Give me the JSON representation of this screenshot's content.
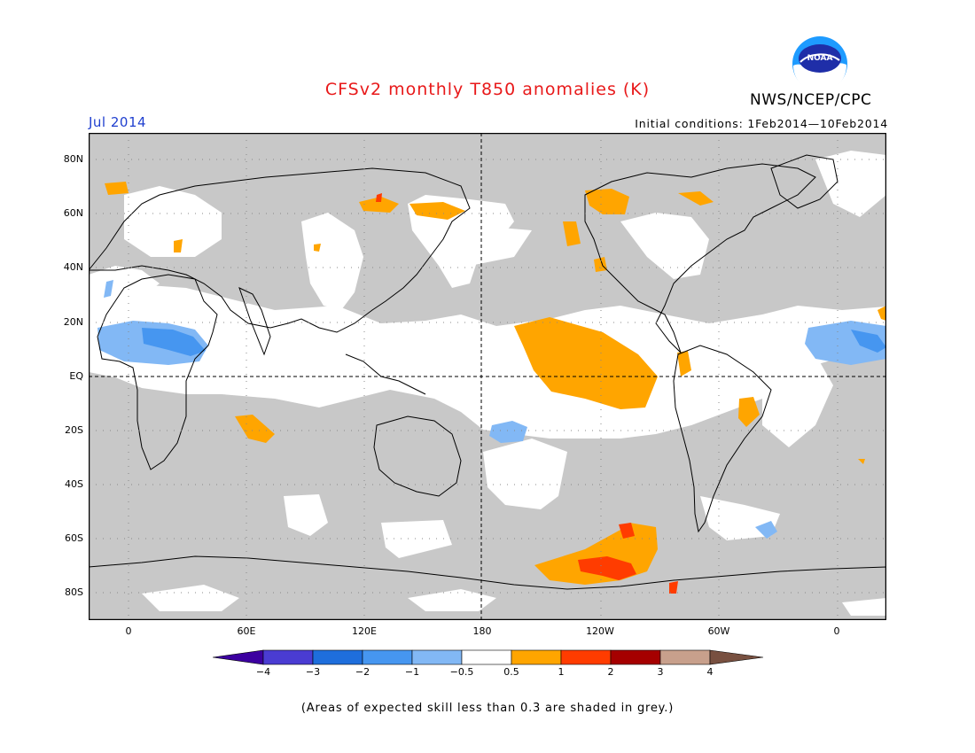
{
  "header": {
    "title": "CFSv2 monthly T850 anomalies (K)",
    "agency": "NWS/NCEP/CPC",
    "logo_text": "NOAA",
    "month": "Jul 2014",
    "initial_conditions": "Initial conditions: 1Feb2014—10Feb2014"
  },
  "map": {
    "projection": "equirectangular, centered on 180",
    "lat_labels": [
      "80N",
      "60N",
      "40N",
      "20N",
      "EQ",
      "20S",
      "40S",
      "60S",
      "80S"
    ],
    "lon_labels": [
      "0",
      "60E",
      "120E",
      "180",
      "120W",
      "60W",
      "0"
    ],
    "colors": {
      "grey_low_skill": "#c8c8c8",
      "neutral": "#ffffff",
      "orange_0_5_to_1": "#ffa500",
      "redorange_1_to_2": "#ff3c00",
      "lightblue_m1_to_m0_5": "#82b8f5",
      "blue_m2_to_m1": "#4696f0",
      "darkblue_m3_to_m2": "#1e6edc"
    }
  },
  "colorbar": {
    "labels": [
      "−4",
      "−3",
      "−2",
      "−1",
      "−0.5",
      "0.5",
      "1",
      "2",
      "3",
      "4"
    ],
    "bins": [
      {
        "color": "#3c00a0"
      },
      {
        "color": "#4a3cd2"
      },
      {
        "color": "#1e6edc"
      },
      {
        "color": "#4696f0"
      },
      {
        "color": "#82b8f5"
      },
      {
        "color": "#ffffff"
      },
      {
        "color": "#ffa500"
      },
      {
        "color": "#ff3c00"
      },
      {
        "color": "#a50000"
      },
      {
        "color": "#c8a08c"
      },
      {
        "color": "#785040"
      }
    ]
  },
  "footnote": "(Areas of expected skill less than 0.3 are shaded in grey.)"
}
